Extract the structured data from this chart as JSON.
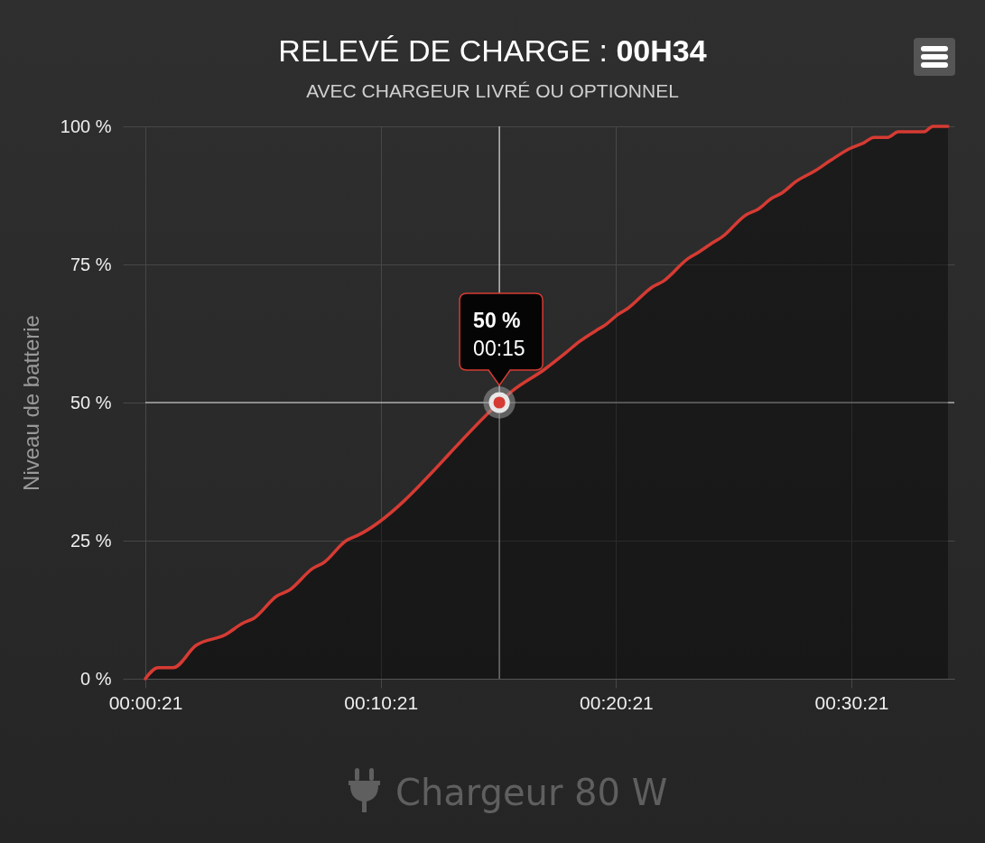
{
  "chart_data": {
    "type": "area",
    "title": "RELEVÉ DE CHARGE : 00H34",
    "subtitle": "AVEC CHARGEUR LIVRÉ OU OPTIONNEL",
    "ylabel": "Niveau de batterie",
    "x": [
      0.0058,
      0.0148,
      0.0255,
      0.0415,
      0.0627,
      0.0745,
      0.083,
      0.099,
      0.1075,
      0.1245,
      0.132,
      0.148,
      0.1565,
      0.2565,
      0.2652,
      0.2885,
      0.3035,
      0.313,
      0.3248,
      0.3312,
      0.3408,
      0.3472,
      0.3653,
      0.3728,
      0.3898,
      0.3962,
      0.408,
      0.4143,
      0.4313,
      0.4398,
      0.4495,
      0.457,
      0.4665,
      0.4803,
      0.492,
      0.5048,
      0.5145,
      0.5218,
      0.5315,
      0.539,
      0.5572,
      0.5635,
      0.5742
    ],
    "values": [
      0,
      2,
      2,
      6,
      8,
      10,
      11,
      15,
      16,
      20,
      21,
      25,
      26,
      50,
      52,
      56,
      59,
      61,
      63,
      64,
      66,
      67,
      71,
      72,
      76,
      77,
      79,
      80,
      84,
      85,
      87,
      88,
      90,
      92,
      94,
      96,
      97,
      98,
      98,
      99,
      99,
      100,
      100
    ],
    "color": "#d63b33",
    "xlim": [
      0.0058,
      0.5787
    ],
    "xticks": [
      {
        "value": 0.0058,
        "label": "00:00:21"
      },
      {
        "value": 0.1725,
        "label": "00:10:21"
      },
      {
        "value": 0.3392,
        "label": "00:20:21"
      },
      {
        "value": 0.5058,
        "label": "00:30:21"
      }
    ],
    "ylim": [
      0,
      100
    ],
    "yticks": [
      {
        "value": 0,
        "label": "0 %"
      },
      {
        "value": 25,
        "label": "25 %"
      },
      {
        "value": 50,
        "label": "50 %"
      },
      {
        "value": 75,
        "label": "75 %"
      },
      {
        "value": 100,
        "label": "100 %"
      }
    ],
    "grid": true,
    "ref_lines": [
      {
        "axis": "x",
        "value": 0.2565,
        "color": "#ffffff"
      },
      {
        "axis": "y",
        "value": 50,
        "color": "#ffffff"
      }
    ],
    "annotations": [
      {
        "text": "50 %\n00:15",
        "x": 0.2565,
        "y": 50
      },
      "Chargeur 80 W"
    ]
  }
}
